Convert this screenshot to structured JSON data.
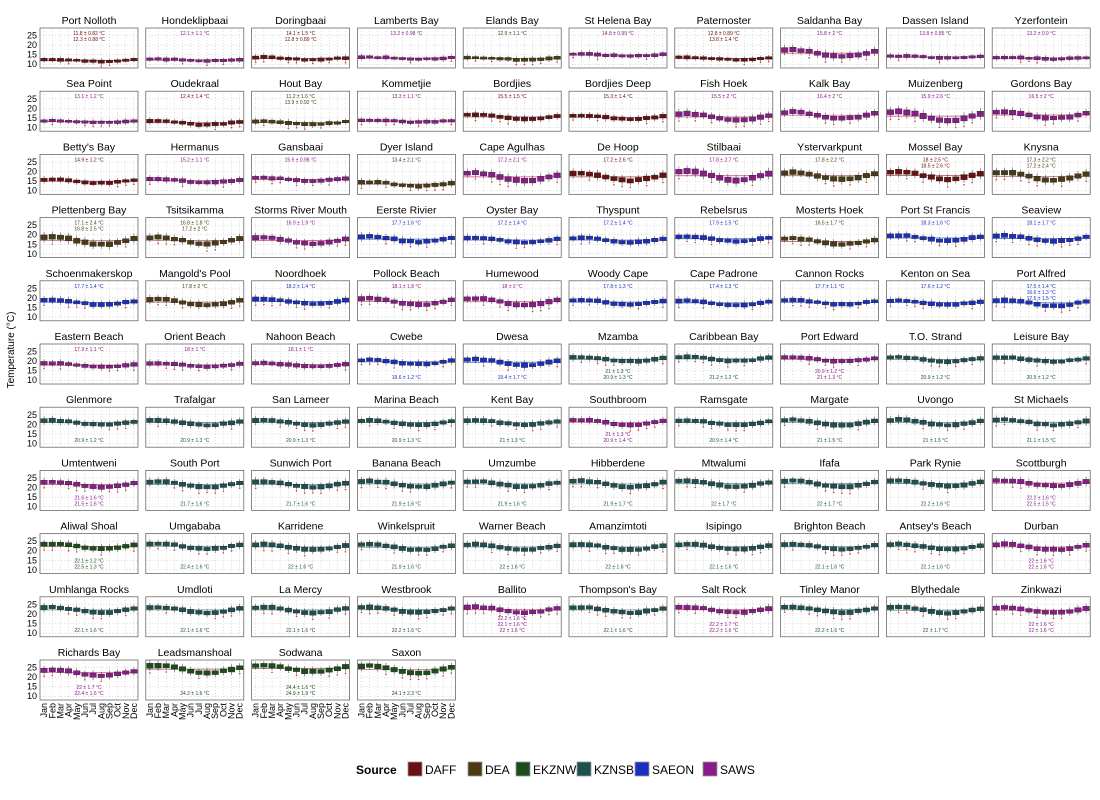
{
  "chart_data": {
    "type": "boxplot-facets",
    "ylabel": "Temperature (°C)",
    "yticks": [
      10,
      15,
      20,
      25
    ],
    "ylim": [
      8,
      29
    ],
    "grid": true,
    "x_months": [
      "Jan",
      "Feb",
      "Mar",
      "Apr",
      "May",
      "Jun",
      "Jul",
      "Aug",
      "Sep",
      "Oct",
      "Nov",
      "Dec"
    ],
    "legend": {
      "title": "Source",
      "entries": [
        {
          "name": "DAFF",
          "color": "#6b1010"
        },
        {
          "name": "DEA",
          "color": "#4a3b12"
        },
        {
          "name": "EKZNW",
          "color": "#1b4d1b"
        },
        {
          "name": "KZNSB",
          "color": "#1f5050"
        },
        {
          "name": "SAEON",
          "color": "#1a2fbf"
        },
        {
          "name": "SAWS",
          "color": "#8b1a8b"
        }
      ],
      "placement": "bottom"
    },
    "panels": [
      {
        "name": "Port Nolloth",
        "src": "DAFF",
        "mean": 12,
        "amp": 0.6,
        "ann": [
          "11.8 ± 0.82 °C",
          "12.3 ± 0.88 °C"
        ]
      },
      {
        "name": "Hondeklipbaai",
        "src": "SAWS",
        "mean": 12.2,
        "amp": 0.6,
        "ann": [
          "12.1 ± 1.1 °C"
        ]
      },
      {
        "name": "Doringbaai",
        "src": "DAFF",
        "mean": 13,
        "amp": 0.8,
        "ann": [
          "14.1 ± 1.5 °C",
          "12.8 ± 0.89 °C"
        ]
      },
      {
        "name": "Lamberts Bay",
        "src": "SAWS",
        "mean": 13.2,
        "amp": 0.6,
        "ann": [
          "13.2 ± 0.98 °C"
        ]
      },
      {
        "name": "Elands Bay",
        "src": "DEA",
        "mean": 12.9,
        "amp": 0.7,
        "ann": [
          "12.9 ± 1.1 °C"
        ]
      },
      {
        "name": "St Helena Bay",
        "src": "SAWS",
        "mean": 14.8,
        "amp": 0.7,
        "ann": [
          "14.8 ± 0.99 °C"
        ]
      },
      {
        "name": "Paternoster",
        "src": "DAFF",
        "mean": 13,
        "amp": 0.8,
        "ann": [
          "12.8 ± 0.89 °C",
          "13.8 ± 1.4 °C"
        ]
      },
      {
        "name": "Saldanha Bay",
        "src": "SAWS",
        "mean": 15.8,
        "amp": 2.2,
        "ann": [
          "15.8 ± 2 °C"
        ]
      },
      {
        "name": "Dassen Island",
        "src": "SAWS",
        "mean": 13.8,
        "amp": 0.6,
        "ann": [
          "13.8 ± 0.85 °C"
        ]
      },
      {
        "name": "Yzerfontein",
        "src": "SAWS",
        "mean": 13.2,
        "amp": 0.6,
        "ann": [
          "13.2 ± 0.9 °C"
        ]
      },
      {
        "name": "Sea Point",
        "src": "SAWS",
        "mean": 13.1,
        "amp": 0.6,
        "ann": [
          "13.1 ± 1.2 °C"
        ]
      },
      {
        "name": "Oudekraal",
        "src": "DAFF",
        "mean": 12.4,
        "amp": 1.2,
        "ann": [
          "12.4 ± 1.4 °C"
        ]
      },
      {
        "name": "Hout Bay",
        "src": "DEA",
        "mean": 12.5,
        "amp": 1,
        "ann": [
          "11.2 ± 1.6 °C",
          "13.9 ± 0.92 °C"
        ]
      },
      {
        "name": "Kommetjie",
        "src": "SAWS",
        "mean": 13.3,
        "amp": 0.7,
        "ann": [
          "13.3 ± 1.1 °C"
        ]
      },
      {
        "name": "Bordjies",
        "src": "DAFF",
        "mean": 15.5,
        "amp": 1.5,
        "ann": [
          "15.5 ± 1.5 °C"
        ]
      },
      {
        "name": "Bordjies Deep",
        "src": "DAFF",
        "mean": 15.3,
        "amp": 1.3,
        "ann": [
          "15.3 ± 1.4 °C"
        ]
      },
      {
        "name": "Fish Hoek",
        "src": "SAWS",
        "mean": 15.5,
        "amp": 2.2,
        "ann": [
          "15.5 ± 2 °C"
        ]
      },
      {
        "name": "Kalk Bay",
        "src": "SAWS",
        "mean": 16.4,
        "amp": 2.2,
        "ann": [
          "16.4 ± 2 °C"
        ]
      },
      {
        "name": "Muizenberg",
        "src": "SAWS",
        "mean": 15.9,
        "amp": 3,
        "ann": [
          "15.9 ± 2.6 °C"
        ]
      },
      {
        "name": "Gordons Bay",
        "src": "SAWS",
        "mean": 16.5,
        "amp": 2.2,
        "ann": [
          "16.5 ± 2 °C"
        ]
      },
      {
        "name": "Betty's Bay",
        "src": "DAFF",
        "mean": 14.9,
        "amp": 1.2,
        "ann": [
          "14.9 ± 1.2 °C"
        ]
      },
      {
        "name": "Hermanus",
        "src": "SAWS",
        "mean": 15.2,
        "amp": 1.2,
        "ann": [
          "15.2 ± 1.1 °C"
        ]
      },
      {
        "name": "Gansbaai",
        "src": "SAWS",
        "mean": 15.9,
        "amp": 1,
        "ann": [
          "15.9 ± 0.98 °C"
        ]
      },
      {
        "name": "Dyer Island",
        "src": "DEA",
        "mean": 13.4,
        "amp": 1.4,
        "ann": [
          "13.4 ± 2.1 °C"
        ]
      },
      {
        "name": "Cape Agulhas",
        "src": "SAWS",
        "mean": 17.2,
        "amp": 2.6,
        "ann": [
          "17.2 ± 2.1 °C"
        ]
      },
      {
        "name": "De Hoop",
        "src": "DAFF",
        "mean": 17.2,
        "amp": 2.4,
        "ann": [
          "17.2 ± 2.6 °C"
        ]
      },
      {
        "name": "Stilbaai",
        "src": "SAWS",
        "mean": 17.8,
        "amp": 3,
        "ann": [
          "17.8 ± 2.7 °C"
        ]
      },
      {
        "name": "Ystervarkpunt",
        "src": "DEA",
        "mean": 17.8,
        "amp": 2.4,
        "ann": [
          "17.8 ± 2.2 °C"
        ]
      },
      {
        "name": "Mossel Bay",
        "src": "DAFF",
        "mean": 18,
        "amp": 2.6,
        "ann": [
          "18 ± 2.5 °C",
          "18.5 ± 2.6 °C"
        ]
      },
      {
        "name": "Knysna",
        "src": "DEA",
        "mean": 17.5,
        "amp": 2.5,
        "ann": [
          "17.3 ± 2.2 °C",
          "17.2 ± 2.4 °C"
        ]
      },
      {
        "name": "Plettenberg Bay",
        "src": "DEA",
        "mean": 17,
        "amp": 2.6,
        "ann": [
          "17.1 ± 2.4 °C",
          "16.8 ± 2.5 °C"
        ]
      },
      {
        "name": "Tsitsikamma",
        "src": "DEA",
        "mean": 17,
        "amp": 2.2,
        "ann": [
          "16.8 ± 1.8 °C",
          "17.2 ± 2 °C"
        ]
      },
      {
        "name": "Storms River Mouth",
        "src": "SAWS",
        "mean": 16.9,
        "amp": 2,
        "ann": [
          "16.9 ± 1.9 °C"
        ]
      },
      {
        "name": "Eerste Rivier",
        "src": "SAEON",
        "mean": 17.7,
        "amp": 1.8,
        "ann": [
          "17.7 ± 1.6 °C"
        ]
      },
      {
        "name": "Oyster Bay",
        "src": "SAEON",
        "mean": 17.2,
        "amp": 1.6,
        "ann": [
          "17.2 ± 1.4 °C"
        ]
      },
      {
        "name": "Thyspunt",
        "src": "SAEON",
        "mean": 17.2,
        "amp": 1.6,
        "ann": [
          "17.2 ± 1.4 °C"
        ]
      },
      {
        "name": "Rebelsrus",
        "src": "SAEON",
        "mean": 17.9,
        "amp": 1.6,
        "ann": [
          "17.9 ± 1.5 °C"
        ]
      },
      {
        "name": "Mosterts Hoek",
        "src": "DEA",
        "mean": 16.5,
        "amp": 2,
        "ann": [
          "16.5 ± 1.7 °C"
        ]
      },
      {
        "name": "Port St Francis",
        "src": "SAEON",
        "mean": 18.3,
        "amp": 1.8,
        "ann": [
          "18.3 ± 1.6 °C"
        ]
      },
      {
        "name": "Seaview",
        "src": "SAEON",
        "mean": 18.1,
        "amp": 1.8,
        "ann": [
          "18.1 ± 1.7 °C"
        ]
      },
      {
        "name": "Schoenmakerskop",
        "src": "SAEON",
        "mean": 17.7,
        "amp": 1.6,
        "ann": [
          "17.7 ± 1.4 °C"
        ]
      },
      {
        "name": "Mangold's Pool",
        "src": "DEA",
        "mean": 17.8,
        "amp": 2,
        "ann": [
          "17.8 ± 2 °C"
        ]
      },
      {
        "name": "Noordhoek",
        "src": "SAEON",
        "mean": 18.2,
        "amp": 1.6,
        "ann": [
          "18.2 ± 1.4 °C"
        ]
      },
      {
        "name": "Pollock Beach",
        "src": "SAWS",
        "mean": 18.1,
        "amp": 2,
        "ann": [
          "18.1 ± 1.8 °C"
        ]
      },
      {
        "name": "Humewood",
        "src": "SAWS",
        "mean": 18,
        "amp": 2.2,
        "ann": [
          "18 ± 2 °C"
        ]
      },
      {
        "name": "Woody Cape",
        "src": "SAEON",
        "mean": 17.8,
        "amp": 1.6,
        "ann": [
          "17.8 ± 1.3 °C"
        ]
      },
      {
        "name": "Cape Padrone",
        "src": "SAEON",
        "mean": 17.4,
        "amp": 1.6,
        "ann": [
          "17.4 ± 1.3 °C"
        ]
      },
      {
        "name": "Cannon Rocks",
        "src": "SAEON",
        "mean": 17.7,
        "amp": 1.4,
        "ann": [
          "17.7 ± 1.1 °C"
        ]
      },
      {
        "name": "Kenton on Sea",
        "src": "SAEON",
        "mean": 17.6,
        "amp": 1.4,
        "ann": [
          "17.6 ± 1.2 °C"
        ]
      },
      {
        "name": "Port Alfred",
        "src": "SAEON",
        "mean": 17.4,
        "amp": 2,
        "ann": [
          "17.5 ± 1.4 °C",
          "16.6 ± 1.3 °C",
          "17.5 ± 1.5 °C"
        ]
      },
      {
        "name": "Eastern Beach",
        "src": "SAWS",
        "mean": 17.9,
        "amp": 1.2,
        "ann": [
          "17.9 ± 1.1 °C"
        ]
      },
      {
        "name": "Orient Beach",
        "src": "SAWS",
        "mean": 18,
        "amp": 1.2,
        "ann": [
          "18 ± 1 °C"
        ]
      },
      {
        "name": "Nahoon Beach",
        "src": "SAWS",
        "mean": 18.1,
        "amp": 1.2,
        "ann": [
          "18.1 ± 1 °C"
        ]
      },
      {
        "name": "Cwebe",
        "src": "SAEON",
        "mean": 19.6,
        "amp": 1.4,
        "ann": [
          "19.6 ± 1.2 °C"
        ]
      },
      {
        "name": "Dwesa",
        "src": "SAEON",
        "mean": 19.4,
        "amp": 2,
        "ann": [
          "19.4 ± 1.7 °C"
        ]
      },
      {
        "name": "Mzamba",
        "src": "KZNSB",
        "mean": 21,
        "amp": 1.4,
        "ann": [
          "21 ± 1.3 °C",
          "20.9 ± 1.3 °C"
        ]
      },
      {
        "name": "Caribbean Bay",
        "src": "KZNSB",
        "mean": 21.2,
        "amp": 1.4,
        "ann": [
          "21.2 ± 1.2 °C"
        ]
      },
      {
        "name": "Port Edward",
        "src": "SAWS",
        "mean": 21,
        "amp": 1.4,
        "ann": [
          "20.9 ± 1.2 °C",
          "21 ± 1.3 °C"
        ]
      },
      {
        "name": "T.O. Strand",
        "src": "KZNSB",
        "mean": 20.9,
        "amp": 1.4,
        "ann": [
          "20.9 ± 1.2 °C"
        ]
      },
      {
        "name": "Leisure Bay",
        "src": "KZNSB",
        "mean": 20.9,
        "amp": 1.4,
        "ann": [
          "20.9 ± 1.2 °C"
        ]
      },
      {
        "name": "Glenmore",
        "src": "KZNSB",
        "mean": 20.9,
        "amp": 1.4,
        "ann": [
          "20.9 ± 1.2 °C"
        ]
      },
      {
        "name": "Trafalgar",
        "src": "KZNSB",
        "mean": 20.9,
        "amp": 1.6,
        "ann": [
          "20.9 ± 1.3 °C"
        ]
      },
      {
        "name": "San Lameer",
        "src": "KZNSB",
        "mean": 20.9,
        "amp": 1.6,
        "ann": [
          "20.9 ± 1.3 °C"
        ]
      },
      {
        "name": "Marina Beach",
        "src": "KZNSB",
        "mean": 20.9,
        "amp": 1.6,
        "ann": [
          "20.9 ± 1.3 °C"
        ]
      },
      {
        "name": "Kent Bay",
        "src": "KZNSB",
        "mean": 21,
        "amp": 1.6,
        "ann": [
          "21 ± 1.3 °C"
        ]
      },
      {
        "name": "Southbroom",
        "src": "SAWS",
        "mean": 21,
        "amp": 1.6,
        "ann": [
          "21 ± 1.3 °C",
          "20.9 ± 1.4 °C"
        ]
      },
      {
        "name": "Ramsgate",
        "src": "KZNSB",
        "mean": 20.9,
        "amp": 1.6,
        "ann": [
          "20.9 ± 1.4 °C"
        ]
      },
      {
        "name": "Margate",
        "src": "KZNSB",
        "mean": 21,
        "amp": 1.8,
        "ann": [
          "21 ± 1.5 °C"
        ]
      },
      {
        "name": "Uvongo",
        "src": "KZNSB",
        "mean": 21,
        "amp": 1.8,
        "ann": [
          "21 ± 1.5 °C"
        ]
      },
      {
        "name": "St Michaels",
        "src": "KZNSB",
        "mean": 21.1,
        "amp": 1.8,
        "ann": [
          "21.1 ± 1.5 °C"
        ]
      },
      {
        "name": "Umtentweni",
        "src": "SAWS",
        "mean": 21.6,
        "amp": 1.8,
        "ann": [
          "21.6 ± 1.6 °C",
          "21.5 ± 1.6 °C"
        ]
      },
      {
        "name": "South Port",
        "src": "KZNSB",
        "mean": 21.7,
        "amp": 1.8,
        "ann": [
          "21.7 ± 1.6 °C"
        ]
      },
      {
        "name": "Sunwich Port",
        "src": "KZNSB",
        "mean": 21.7,
        "amp": 1.8,
        "ann": [
          "21.7 ± 1.6 °C"
        ]
      },
      {
        "name": "Banana Beach",
        "src": "KZNSB",
        "mean": 21.9,
        "amp": 1.8,
        "ann": [
          "21.9 ± 1.6 °C"
        ]
      },
      {
        "name": "Umzumbe",
        "src": "KZNSB",
        "mean": 21.9,
        "amp": 1.8,
        "ann": [
          "21.9 ± 1.6 °C"
        ]
      },
      {
        "name": "Hibberdene",
        "src": "KZNSB",
        "mean": 21.9,
        "amp": 2,
        "ann": [
          "21.9 ± 1.7 °C"
        ]
      },
      {
        "name": "Mtwalumi",
        "src": "KZNSB",
        "mean": 22,
        "amp": 2,
        "ann": [
          "22 ± 1.7 °C"
        ]
      },
      {
        "name": "Ifafa",
        "src": "KZNSB",
        "mean": 22,
        "amp": 2,
        "ann": [
          "22 ± 1.7 °C"
        ]
      },
      {
        "name": "Park Rynie",
        "src": "KZNSB",
        "mean": 22.2,
        "amp": 1.8,
        "ann": [
          "22.2 ± 1.6 °C"
        ]
      },
      {
        "name": "Scottburgh",
        "src": "SAWS",
        "mean": 22.3,
        "amp": 1.8,
        "ann": [
          "22.2 ± 1.6 °C",
          "22.5 ± 1.5 °C"
        ]
      },
      {
        "name": "Aliwal Shoal",
        "src": "EKZNW",
        "mean": 22.3,
        "amp": 1.6,
        "ann": [
          "22.1 ± 1.2 °C",
          "22.5 ± 1.3 °C"
        ]
      },
      {
        "name": "Umgababa",
        "src": "KZNSB",
        "mean": 22.4,
        "amp": 1.8,
        "ann": [
          "22.4 ± 1.6 °C"
        ]
      },
      {
        "name": "Karridene",
        "src": "KZNSB",
        "mean": 22,
        "amp": 1.8,
        "ann": [
          "22 ± 1.6 °C"
        ]
      },
      {
        "name": "Winkelspruit",
        "src": "KZNSB",
        "mean": 21.9,
        "amp": 1.8,
        "ann": [
          "21.9 ± 1.6 °C"
        ]
      },
      {
        "name": "Warner Beach",
        "src": "KZNSB",
        "mean": 22,
        "amp": 1.8,
        "ann": [
          "22 ± 1.6 °C"
        ]
      },
      {
        "name": "Amanzimtoti",
        "src": "KZNSB",
        "mean": 22,
        "amp": 1.8,
        "ann": [
          "22 ± 1.6 °C"
        ]
      },
      {
        "name": "Isipingo",
        "src": "KZNSB",
        "mean": 22.1,
        "amp": 1.8,
        "ann": [
          "22.1 ± 1.6 °C"
        ]
      },
      {
        "name": "Brighton Beach",
        "src": "KZNSB",
        "mean": 22.1,
        "amp": 1.8,
        "ann": [
          "22.1 ± 1.6 °C"
        ]
      },
      {
        "name": "Antsey's Beach",
        "src": "KZNSB",
        "mean": 22.1,
        "amp": 1.8,
        "ann": [
          "22.1 ± 1.6 °C"
        ]
      },
      {
        "name": "Durban",
        "src": "SAWS",
        "mean": 22,
        "amp": 1.8,
        "ann": [
          "22 ± 1.6 °C",
          "22 ± 1.6 °C"
        ]
      },
      {
        "name": "Umhlanga Rocks",
        "src": "KZNSB",
        "mean": 22.1,
        "amp": 1.8,
        "ann": [
          "22.1 ± 1.6 °C"
        ]
      },
      {
        "name": "Umdloti",
        "src": "KZNSB",
        "mean": 22.1,
        "amp": 1.8,
        "ann": [
          "22.1 ± 1.6 °C"
        ]
      },
      {
        "name": "La Mercy",
        "src": "KZNSB",
        "mean": 22.1,
        "amp": 1.8,
        "ann": [
          "22.1 ± 1.6 °C"
        ]
      },
      {
        "name": "Westbrook",
        "src": "KZNSB",
        "mean": 22.2,
        "amp": 1.8,
        "ann": [
          "22.2 ± 1.6 °C"
        ]
      },
      {
        "name": "Ballito",
        "src": "SAWS",
        "mean": 22.2,
        "amp": 1.8,
        "ann": [
          "22.2 ± 1.6 °C",
          "22.1 ± 1.6 °C",
          "22 ± 1.6 °C"
        ]
      },
      {
        "name": "Thompson's Bay",
        "src": "KZNSB",
        "mean": 22.1,
        "amp": 1.8,
        "ann": [
          "22.1 ± 1.6 °C"
        ]
      },
      {
        "name": "Salt Rock",
        "src": "SAWS",
        "mean": 22.2,
        "amp": 1.8,
        "ann": [
          "22.2 ± 1.7 °C",
          "22.2 ± 1.6 °C"
        ]
      },
      {
        "name": "Tinley Manor",
        "src": "KZNSB",
        "mean": 22.2,
        "amp": 1.8,
        "ann": [
          "22.2 ± 1.6 °C"
        ]
      },
      {
        "name": "Blythedale",
        "src": "KZNSB",
        "mean": 22,
        "amp": 2,
        "ann": [
          "22 ± 1.7 °C"
        ]
      },
      {
        "name": "Zinkwazi",
        "src": "SAWS",
        "mean": 22,
        "amp": 1.8,
        "ann": [
          "22 ± 1.6 °C",
          "22 ± 1.6 °C"
        ]
      },
      {
        "name": "Richards Bay",
        "src": "SAWS",
        "mean": 22.4,
        "amp": 2,
        "ann": [
          "22 ± 1.7 °C",
          "22.4 ± 1.6 °C"
        ]
      },
      {
        "name": "Leadsmanshoal",
        "src": "EKZNW",
        "mean": 24.2,
        "amp": 2.4,
        "ann": [
          "24.2 ± 1.6 °C"
        ]
      },
      {
        "name": "Sodwana",
        "src": "EKZNW",
        "mean": 24.6,
        "amp": 2.2,
        "ann": [
          "24.4 ± 1.6 °C",
          "24.9 ± 1.9 °C"
        ]
      },
      {
        "name": "Saxon",
        "src": "EKZNW",
        "mean": 24.1,
        "amp": 2.4,
        "ann": [
          "24.1 ± 2.3 °C"
        ]
      }
    ]
  }
}
